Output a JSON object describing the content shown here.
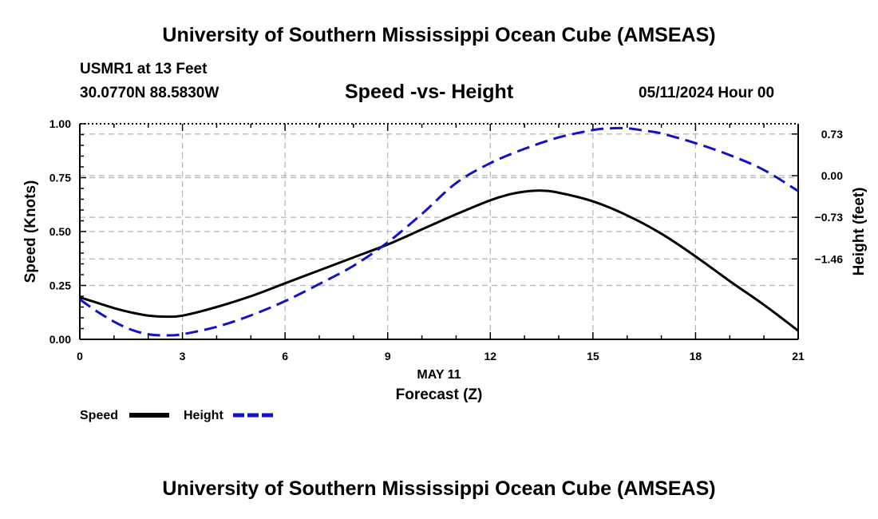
{
  "header": {
    "title_top": "University of Southern Mississippi Ocean Cube (AMSEAS)",
    "title_bottom": "University of Southern Mississippi Ocean Cube (AMSEAS)",
    "station": "USMR1 at 13 Feet",
    "coords": "30.0770N  88.5830W",
    "datetime": "05/11/2024 Hour 00"
  },
  "colors": {
    "speed": "#000000",
    "height": "#1111cc",
    "grid": "#b4b4b4"
  },
  "chart_data": {
    "type": "line",
    "title": "Speed -vs- Height",
    "xlabel": "Forecast (Z)",
    "date_label": "MAY 11",
    "ylabel": "Speed (Knots)",
    "y2label": "Height (feet)",
    "xlim": [
      0,
      21
    ],
    "ylim": [
      0,
      1
    ],
    "y2lim": [
      -2.87,
      0.91
    ],
    "x_ticks": [
      0,
      3,
      6,
      9,
      12,
      15,
      18,
      21
    ],
    "y_ticks": [
      0,
      0.25,
      0.5,
      0.75,
      1
    ],
    "y_tick_labels": [
      "0.00",
      "0.25",
      "0.50",
      "0.75",
      "1.00"
    ],
    "y2_ticks": [
      0.73,
      0,
      -0.73,
      -1.46
    ],
    "y2_tick_labels": [
      "0.73",
      "0.00",
      "−0.73",
      "−1.46"
    ],
    "grid": true,
    "legend_position": "bottom-left",
    "series": [
      {
        "name": "Speed",
        "axis": "left",
        "style": "solid",
        "x": [
          0,
          0.5,
          1,
          1.5,
          2,
          2.5,
          3,
          4,
          5,
          6,
          7,
          8,
          9,
          10,
          11,
          12,
          12.5,
          13,
          13.5,
          14,
          15,
          16,
          17,
          18,
          19,
          20,
          21
        ],
        "values": [
          0.195,
          0.17,
          0.145,
          0.125,
          0.11,
          0.105,
          0.11,
          0.15,
          0.2,
          0.26,
          0.32,
          0.38,
          0.44,
          0.51,
          0.58,
          0.645,
          0.67,
          0.685,
          0.69,
          0.68,
          0.64,
          0.575,
          0.49,
          0.385,
          0.27,
          0.16,
          0.04
        ]
      },
      {
        "name": "Height",
        "axis": "right",
        "style": "dashed",
        "x": [
          0,
          0.5,
          1,
          1.5,
          2,
          2.5,
          3,
          4,
          5,
          6,
          7,
          8,
          9,
          10,
          11,
          12,
          13,
          14,
          15,
          15.5,
          16,
          16.5,
          17,
          18,
          19,
          20,
          21
        ],
        "values": [
          -2.17,
          -2.38,
          -2.56,
          -2.7,
          -2.78,
          -2.8,
          -2.78,
          -2.65,
          -2.45,
          -2.2,
          -1.9,
          -1.58,
          -1.17,
          -0.67,
          -0.13,
          0.22,
          0.47,
          0.67,
          0.8,
          0.83,
          0.83,
          0.79,
          0.74,
          0.57,
          0.36,
          0.1,
          -0.27
        ]
      }
    ]
  }
}
